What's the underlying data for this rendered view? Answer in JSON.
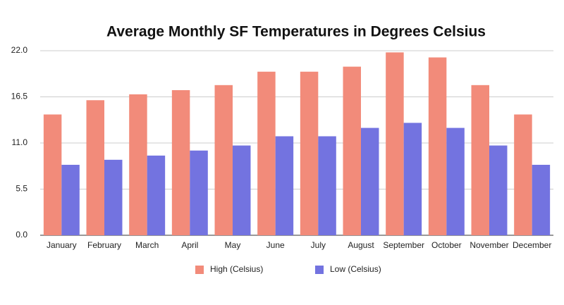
{
  "chart_data": {
    "type": "bar",
    "title": "Average Monthly SF Temperatures in Degrees Celsius",
    "categories": [
      "January",
      "February",
      "March",
      "April",
      "May",
      "June",
      "July",
      "August",
      "September",
      "October",
      "November",
      "December"
    ],
    "series": [
      {
        "name": "High (Celsius)",
        "color": "#f28b7a",
        "values": [
          14.4,
          16.1,
          16.8,
          17.3,
          17.9,
          19.5,
          19.5,
          20.1,
          21.8,
          21.2,
          17.9,
          14.4
        ]
      },
      {
        "name": "Low (Celsius)",
        "color": "#7373e0",
        "values": [
          8.4,
          9.0,
          9.5,
          10.1,
          10.7,
          11.8,
          11.8,
          12.8,
          13.4,
          12.8,
          10.7,
          8.4
        ]
      }
    ],
    "ylim": [
      0,
      22
    ],
    "yticks": [
      {
        "value": 0,
        "label": "0.0"
      },
      5.5,
      {
        "value": 11,
        "label": "11.0"
      },
      16.5,
      {
        "value": 22,
        "label": "22.0"
      }
    ],
    "grid": true,
    "legend": "bottom"
  }
}
